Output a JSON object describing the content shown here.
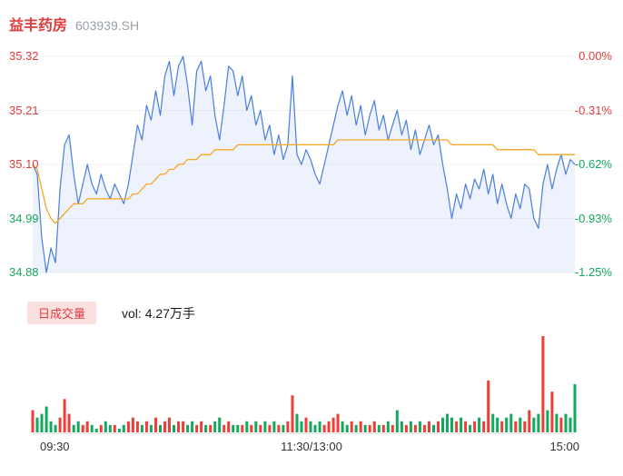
{
  "header": {
    "stock_name": "益丰药房",
    "stock_code": "603939.SH"
  },
  "volume_header": {
    "badge": "日成交量",
    "vol_text": "vol: 4.27万手"
  },
  "chart_data": {
    "type": "line",
    "title": "益丰药房 603939.SH",
    "price_range": [
      34.88,
      35.32
    ],
    "prev_close": 35.32,
    "grid": "faint-horizontal",
    "y_axis_price": {
      "labels": [
        "35.32",
        "35.21",
        "35.10",
        "34.99",
        "34.88"
      ],
      "colors": [
        "#e13c3c",
        "#e13c3c",
        "#e13c3c",
        "#14a95d",
        "#14a95d"
      ]
    },
    "y_axis_pct": {
      "labels": [
        "0.00%",
        "-0.31%",
        "-0.62%",
        "-0.93%",
        "-1.25%"
      ],
      "colors": [
        "#e13c3c",
        "#e13c3c",
        "#14a95d",
        "#14a95d",
        "#14a95d"
      ]
    },
    "x_axis": {
      "labels": [
        "09:30",
        "11:30/13:00",
        "15:00"
      ]
    },
    "series": [
      {
        "name": "price",
        "color": "#4a7ede",
        "fill": "rgba(74,126,222,0.10)",
        "values": [
          35.1,
          35.08,
          34.95,
          34.88,
          34.93,
          34.9,
          35.05,
          35.14,
          35.16,
          35.08,
          35.02,
          35.06,
          35.1,
          35.06,
          35.04,
          35.08,
          35.05,
          35.03,
          35.06,
          35.04,
          35.02,
          35.06,
          35.12,
          35.18,
          35.15,
          35.22,
          35.19,
          35.25,
          35.2,
          35.28,
          35.31,
          35.24,
          35.3,
          35.32,
          35.26,
          35.18,
          35.29,
          35.31,
          35.25,
          35.28,
          35.2,
          35.15,
          35.22,
          35.3,
          35.29,
          35.24,
          35.28,
          35.21,
          35.24,
          35.18,
          35.21,
          35.15,
          35.18,
          35.12,
          35.16,
          35.11,
          35.14,
          35.28,
          35.12,
          35.1,
          35.13,
          35.11,
          35.08,
          35.06,
          35.1,
          35.14,
          35.18,
          35.22,
          35.25,
          35.2,
          35.24,
          35.18,
          35.22,
          35.16,
          35.2,
          35.23,
          35.17,
          35.2,
          35.15,
          35.18,
          35.21,
          35.16,
          35.19,
          35.13,
          35.17,
          35.12,
          35.15,
          35.18,
          35.14,
          35.16,
          35.1,
          35.05,
          34.99,
          35.04,
          35.01,
          35.06,
          35.03,
          35.07,
          35.05,
          35.09,
          35.04,
          35.08,
          35.02,
          35.06,
          35.02,
          34.99,
          35.04,
          35.01,
          35.06,
          35.05,
          34.99,
          34.97,
          35.06,
          35.1,
          35.05,
          35.09,
          35.12,
          35.08,
          35.11,
          35.1
        ]
      },
      {
        "name": "avg",
        "color": "#f6a722",
        "values": [
          35.1,
          35.09,
          35.05,
          35.01,
          34.99,
          34.98,
          34.99,
          35.0,
          35.01,
          35.02,
          35.02,
          35.02,
          35.03,
          35.03,
          35.03,
          35.03,
          35.03,
          35.03,
          35.03,
          35.03,
          35.03,
          35.03,
          35.04,
          35.04,
          35.05,
          35.06,
          35.06,
          35.07,
          35.08,
          35.08,
          35.09,
          35.09,
          35.1,
          35.1,
          35.11,
          35.11,
          35.11,
          35.12,
          35.12,
          35.12,
          35.13,
          35.13,
          35.13,
          35.13,
          35.13,
          35.14,
          35.14,
          35.14,
          35.14,
          35.14,
          35.14,
          35.14,
          35.14,
          35.14,
          35.14,
          35.14,
          35.14,
          35.14,
          35.14,
          35.14,
          35.14,
          35.14,
          35.14,
          35.14,
          35.14,
          35.14,
          35.14,
          35.15,
          35.15,
          35.15,
          35.15,
          35.15,
          35.15,
          35.15,
          35.15,
          35.15,
          35.15,
          35.15,
          35.15,
          35.15,
          35.15,
          35.15,
          35.15,
          35.15,
          35.15,
          35.15,
          35.15,
          35.15,
          35.15,
          35.15,
          35.15,
          35.15,
          35.14,
          35.14,
          35.14,
          35.14,
          35.14,
          35.14,
          35.14,
          35.14,
          35.14,
          35.14,
          35.13,
          35.13,
          35.13,
          35.13,
          35.13,
          35.13,
          35.13,
          35.13,
          35.13,
          35.12,
          35.12,
          35.12,
          35.12,
          35.12,
          35.12,
          35.12,
          35.12,
          35.12
        ]
      }
    ],
    "volume": {
      "total_label": "vol: 4.27万手",
      "up_color": "#ef3d38",
      "down_color": "#12a85e",
      "values": [
        0.06,
        0.04,
        0.05,
        0.07,
        0.03,
        0.02,
        0.04,
        0.09,
        0.05,
        0.02,
        0.03,
        0.02,
        0.03,
        0.02,
        0.01,
        0.02,
        0.03,
        0.02,
        0.02,
        0.01,
        0.02,
        0.03,
        0.04,
        0.03,
        0.02,
        0.03,
        0.02,
        0.04,
        0.02,
        0.03,
        0.04,
        0.02,
        0.03,
        0.03,
        0.02,
        0.03,
        0.02,
        0.03,
        0.02,
        0.02,
        0.03,
        0.04,
        0.02,
        0.03,
        0.02,
        0.02,
        0.02,
        0.03,
        0.02,
        0.03,
        0.02,
        0.03,
        0.02,
        0.03,
        0.02,
        0.02,
        0.03,
        0.1,
        0.05,
        0.03,
        0.04,
        0.03,
        0.02,
        0.03,
        0.02,
        0.03,
        0.04,
        0.05,
        0.03,
        0.02,
        0.03,
        0.02,
        0.03,
        0.02,
        0.02,
        0.03,
        0.02,
        0.02,
        0.03,
        0.02,
        0.06,
        0.03,
        0.02,
        0.03,
        0.02,
        0.03,
        0.02,
        0.03,
        0.02,
        0.03,
        0.04,
        0.05,
        0.04,
        0.03,
        0.04,
        0.03,
        0.02,
        0.03,
        0.04,
        0.03,
        0.14,
        0.05,
        0.04,
        0.03,
        0.04,
        0.05,
        0.03,
        0.04,
        0.03,
        0.06,
        0.04,
        0.05,
        0.26,
        0.06,
        0.11,
        0.05,
        0.04,
        0.05,
        0.04,
        0.13
      ],
      "colors": "rgggggrrrggrrggrggrggrrrgrgrgrrgrrggrrgrggrrggrgrgrgrgrgrrggrgggrrrrggrgrgrrgrgrggrgrgrrgrgggrgrgrgrrggrggrgrrggrgrgrggg"
    }
  }
}
